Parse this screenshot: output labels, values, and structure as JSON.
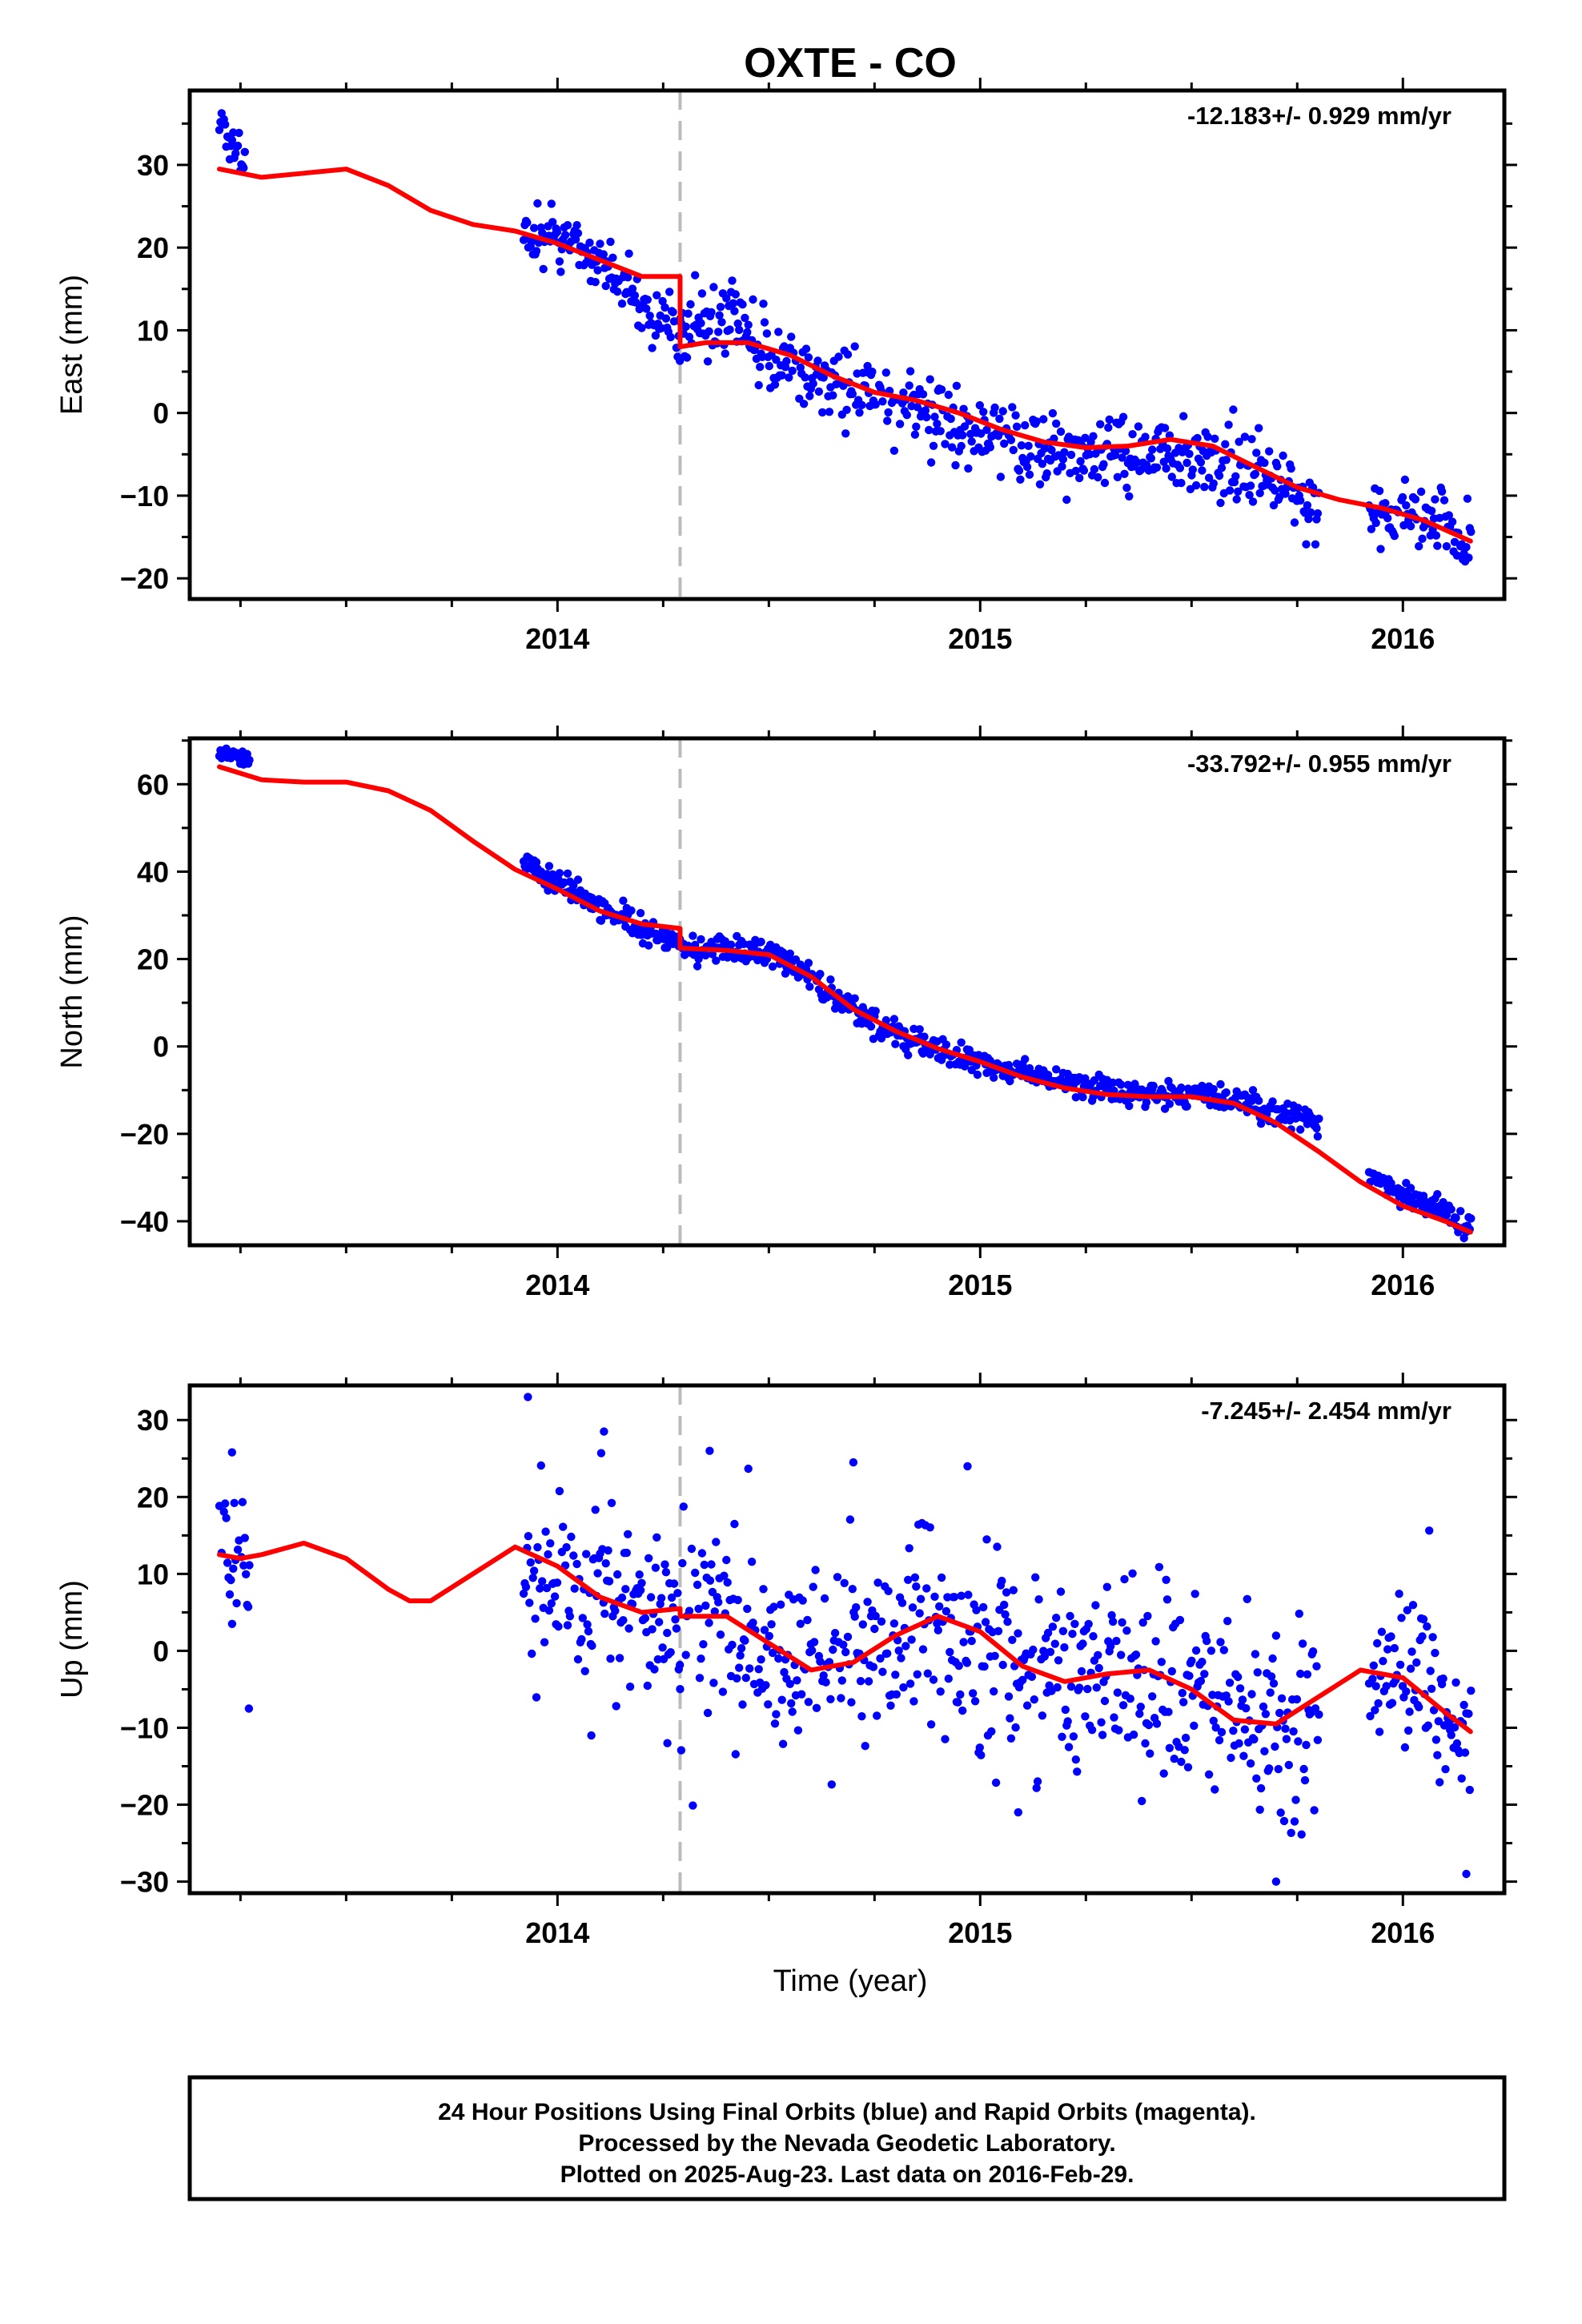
{
  "figure": {
    "title": "OXTE - CO",
    "xlabel": "Time (year)",
    "colors": {
      "data": "#0000ff",
      "model": "#ff0000",
      "event_line": "#bbbbbb",
      "frame": "#000000"
    }
  },
  "caption": {
    "lines": [
      "24 Hour Positions Using Final Orbits (blue) and Rapid Orbits (magenta).",
      "Processed by the Nevada Geodetic Laboratory.",
      "Plotted on 2025-Aug-23. Last data on 2016-Feb-29."
    ]
  },
  "chart_data": [
    {
      "type": "scatter",
      "panel": "east",
      "ylabel": "East (mm)",
      "rate": "-12.183+/- 0.929 mm/yr",
      "xlim": [
        2013.13,
        2016.24
      ],
      "ylim": [
        -22.5,
        39
      ],
      "xticks": [
        2014,
        2015,
        2016
      ],
      "xticklabels": [
        "2014",
        "2015",
        "2016"
      ],
      "yticks": [
        30,
        20,
        10,
        0,
        -10,
        -20
      ],
      "yticklabels": [
        "30",
        "20",
        "10",
        "0",
        "−10",
        "−20"
      ],
      "event_x": 2014.29,
      "segments": [
        {
          "t0": 2013.2,
          "t1": 2013.26,
          "noise": 1.2
        },
        {
          "t0": 2013.92,
          "t1": 2014.29,
          "noise": 1.8
        },
        {
          "t0": 2014.29,
          "t1": 2015.8,
          "noise": 2.2
        },
        {
          "t0": 2015.92,
          "t1": 2016.16,
          "noise": 1.8
        }
      ],
      "observed": [
        [
          2013.2,
          34.5
        ],
        [
          2013.24,
          33
        ],
        [
          2013.27,
          30
        ],
        [
          2013.95,
          21.5
        ],
        [
          2014.05,
          20
        ],
        [
          2014.15,
          16
        ],
        [
          2014.22,
          12
        ],
        [
          2014.28,
          10
        ],
        [
          2014.3,
          10
        ],
        [
          2014.4,
          11.5
        ],
        [
          2014.5,
          7
        ],
        [
          2014.6,
          5
        ],
        [
          2014.7,
          3
        ],
        [
          2014.8,
          1.5
        ],
        [
          2014.9,
          -1
        ],
        [
          2015.0,
          -3
        ],
        [
          2015.1,
          -4
        ],
        [
          2015.2,
          -5
        ],
        [
          2015.3,
          -4.5
        ],
        [
          2015.4,
          -4.5
        ],
        [
          2015.5,
          -5
        ],
        [
          2015.6,
          -7
        ],
        [
          2015.7,
          -8
        ],
        [
          2015.78,
          -12
        ],
        [
          2015.95,
          -12
        ],
        [
          2016.05,
          -11.5
        ],
        [
          2016.12,
          -14
        ],
        [
          2016.16,
          -17
        ]
      ],
      "model": [
        [
          2013.2,
          29.5
        ],
        [
          2013.3,
          28.5
        ],
        [
          2013.4,
          29
        ],
        [
          2013.5,
          29.5
        ],
        [
          2013.6,
          27.5
        ],
        [
          2013.7,
          24.5
        ],
        [
          2013.8,
          22.8
        ],
        [
          2013.9,
          22
        ],
        [
          2014.0,
          20.5
        ],
        [
          2014.1,
          18.5
        ],
        [
          2014.2,
          16.5
        ],
        [
          2014.29,
          16.5
        ],
        [
          2014.29,
          8
        ],
        [
          2014.35,
          8.5
        ],
        [
          2014.45,
          8.5
        ],
        [
          2014.55,
          7
        ],
        [
          2014.65,
          4.5
        ],
        [
          2014.75,
          2.5
        ],
        [
          2014.85,
          1.5
        ],
        [
          2014.95,
          0
        ],
        [
          2015.05,
          -2
        ],
        [
          2015.15,
          -3.5
        ],
        [
          2015.25,
          -4.2
        ],
        [
          2015.35,
          -4
        ],
        [
          2015.45,
          -3.2
        ],
        [
          2015.55,
          -4
        ],
        [
          2015.65,
          -6.5
        ],
        [
          2015.75,
          -9
        ],
        [
          2015.85,
          -10.5
        ],
        [
          2015.95,
          -11.5
        ],
        [
          2016.05,
          -13
        ],
        [
          2016.16,
          -15.5
        ]
      ]
    },
    {
      "type": "scatter",
      "panel": "north",
      "ylabel": "North (mm)",
      "rate": "-33.792+/- 0.955 mm/yr",
      "xlim": [
        2013.13,
        2016.24
      ],
      "ylim": [
        -45.5,
        70.5
      ],
      "xticks": [
        2014,
        2015,
        2016
      ],
      "xticklabels": [
        "2014",
        "2015",
        "2016"
      ],
      "yticks": [
        60,
        40,
        20,
        0,
        -20,
        -40
      ],
      "yticklabels": [
        "60",
        "40",
        "20",
        "0",
        "−20",
        "−40"
      ],
      "event_x": 2014.29,
      "segments": [
        {
          "t0": 2013.2,
          "t1": 2013.27,
          "noise": 0.9
        },
        {
          "t0": 2013.92,
          "t1": 2014.29,
          "noise": 1.4
        },
        {
          "t0": 2014.29,
          "t1": 2015.8,
          "noise": 1.5
        },
        {
          "t0": 2015.92,
          "t1": 2016.16,
          "noise": 1.3
        }
      ],
      "observed": [
        [
          2013.2,
          67.5
        ],
        [
          2013.24,
          66
        ],
        [
          2013.27,
          66
        ],
        [
          2013.93,
          41
        ],
        [
          2014.0,
          38
        ],
        [
          2014.1,
          32
        ],
        [
          2014.2,
          27
        ],
        [
          2014.28,
          24
        ],
        [
          2014.3,
          22
        ],
        [
          2014.4,
          22.5
        ],
        [
          2014.5,
          22
        ],
        [
          2014.6,
          16
        ],
        [
          2014.7,
          8
        ],
        [
          2014.8,
          3
        ],
        [
          2014.9,
          -1
        ],
        [
          2015.0,
          -4
        ],
        [
          2015.1,
          -6
        ],
        [
          2015.2,
          -8
        ],
        [
          2015.3,
          -10
        ],
        [
          2015.4,
          -11
        ],
        [
          2015.5,
          -11
        ],
        [
          2015.6,
          -12
        ],
        [
          2015.7,
          -15
        ],
        [
          2015.78,
          -17
        ],
        [
          2015.95,
          -31
        ],
        [
          2016.05,
          -36
        ],
        [
          2016.12,
          -39
        ],
        [
          2016.16,
          -41
        ]
      ],
      "model": [
        [
          2013.2,
          64
        ],
        [
          2013.3,
          61
        ],
        [
          2013.4,
          60.5
        ],
        [
          2013.5,
          60.5
        ],
        [
          2013.6,
          58.5
        ],
        [
          2013.7,
          54
        ],
        [
          2013.8,
          47
        ],
        [
          2013.9,
          40.5
        ],
        [
          2014.0,
          36
        ],
        [
          2014.1,
          31
        ],
        [
          2014.2,
          28
        ],
        [
          2014.29,
          27
        ],
        [
          2014.29,
          22.5
        ],
        [
          2014.4,
          22
        ],
        [
          2014.5,
          21
        ],
        [
          2014.6,
          16
        ],
        [
          2014.7,
          8.5
        ],
        [
          2014.8,
          3.5
        ],
        [
          2014.9,
          -0.5
        ],
        [
          2015.0,
          -3.5
        ],
        [
          2015.1,
          -7
        ],
        [
          2015.2,
          -9.5
        ],
        [
          2015.3,
          -11
        ],
        [
          2015.4,
          -11.5
        ],
        [
          2015.5,
          -11.5
        ],
        [
          2015.6,
          -13
        ],
        [
          2015.7,
          -17.5
        ],
        [
          2015.8,
          -24
        ],
        [
          2015.9,
          -31
        ],
        [
          2016.0,
          -36.5
        ],
        [
          2016.1,
          -40
        ],
        [
          2016.16,
          -42.5
        ]
      ]
    },
    {
      "type": "scatter",
      "panel": "up",
      "ylabel": "Up (mm)",
      "rate": "-7.245+/- 2.454 mm/yr",
      "xlim": [
        2013.13,
        2016.24
      ],
      "ylim": [
        -31.5,
        34.5
      ],
      "xticks": [
        2014,
        2015,
        2016
      ],
      "xticklabels": [
        "2014",
        "2015",
        "2016"
      ],
      "yticks": [
        30,
        20,
        10,
        0,
        -10,
        -20,
        -30
      ],
      "yticklabels": [
        "30",
        "20",
        "10",
        "0",
        "−10",
        "−20",
        "−30"
      ],
      "event_x": 2014.29,
      "segments": [
        {
          "t0": 2013.2,
          "t1": 2013.27,
          "noise": 5
        },
        {
          "t0": 2013.92,
          "t1": 2014.29,
          "noise": 6
        },
        {
          "t0": 2014.29,
          "t1": 2015.8,
          "noise": 6.5
        },
        {
          "t0": 2015.92,
          "t1": 2016.16,
          "noise": 6
        }
      ],
      "observed": [
        [
          2013.2,
          13
        ],
        [
          2013.24,
          12
        ],
        [
          2013.27,
          11
        ],
        [
          2013.95,
          10
        ],
        [
          2014.05,
          8
        ],
        [
          2014.15,
          6
        ],
        [
          2014.25,
          4
        ],
        [
          2014.35,
          5
        ],
        [
          2014.45,
          3
        ],
        [
          2014.55,
          -1
        ],
        [
          2014.65,
          -2
        ],
        [
          2014.75,
          0
        ],
        [
          2014.85,
          3
        ],
        [
          2014.95,
          4
        ],
        [
          2015.05,
          -2
        ],
        [
          2015.15,
          -4
        ],
        [
          2015.25,
          -4
        ],
        [
          2015.35,
          -3
        ],
        [
          2015.45,
          -4
        ],
        [
          2015.55,
          -6
        ],
        [
          2015.65,
          -9
        ],
        [
          2015.75,
          -9
        ],
        [
          2015.95,
          -2
        ],
        [
          2016.05,
          -4
        ],
        [
          2016.12,
          -7
        ],
        [
          2016.16,
          -10
        ]
      ],
      "model": [
        [
          2013.2,
          12.5
        ],
        [
          2013.25,
          12
        ],
        [
          2013.3,
          12.5
        ],
        [
          2013.4,
          14
        ],
        [
          2013.5,
          12
        ],
        [
          2013.6,
          8
        ],
        [
          2013.65,
          6.5
        ],
        [
          2013.7,
          6.5
        ],
        [
          2013.8,
          10
        ],
        [
          2013.9,
          13.5
        ],
        [
          2014.0,
          11
        ],
        [
          2014.1,
          7
        ],
        [
          2014.2,
          5
        ],
        [
          2014.29,
          5.5
        ],
        [
          2014.29,
          4.5
        ],
        [
          2014.4,
          4.5
        ],
        [
          2014.5,
          1
        ],
        [
          2014.6,
          -2.5
        ],
        [
          2014.7,
          -1.5
        ],
        [
          2014.8,
          2
        ],
        [
          2014.9,
          4.5
        ],
        [
          2015.0,
          2.5
        ],
        [
          2015.1,
          -2
        ],
        [
          2015.2,
          -4
        ],
        [
          2015.3,
          -3
        ],
        [
          2015.4,
          -2.5
        ],
        [
          2015.5,
          -5
        ],
        [
          2015.6,
          -9
        ],
        [
          2015.7,
          -9.5
        ],
        [
          2015.8,
          -6
        ],
        [
          2015.9,
          -2.5
        ],
        [
          2016.0,
          -3.5
        ],
        [
          2016.1,
          -8
        ],
        [
          2016.16,
          -10.5
        ]
      ],
      "outliers": [
        [
          2013.93,
          33
        ],
        [
          2014.36,
          26
        ],
        [
          2014.11,
          28.5
        ],
        [
          2014.7,
          24.5
        ],
        [
          2014.97,
          24
        ],
        [
          2015.7,
          -30
        ],
        [
          2016.15,
          -29
        ],
        [
          2013.23,
          25.8
        ],
        [
          2013.27,
          -7.5
        ],
        [
          2014.08,
          -11
        ],
        [
          2014.26,
          -12
        ],
        [
          2015.09,
          -21
        ]
      ]
    }
  ]
}
